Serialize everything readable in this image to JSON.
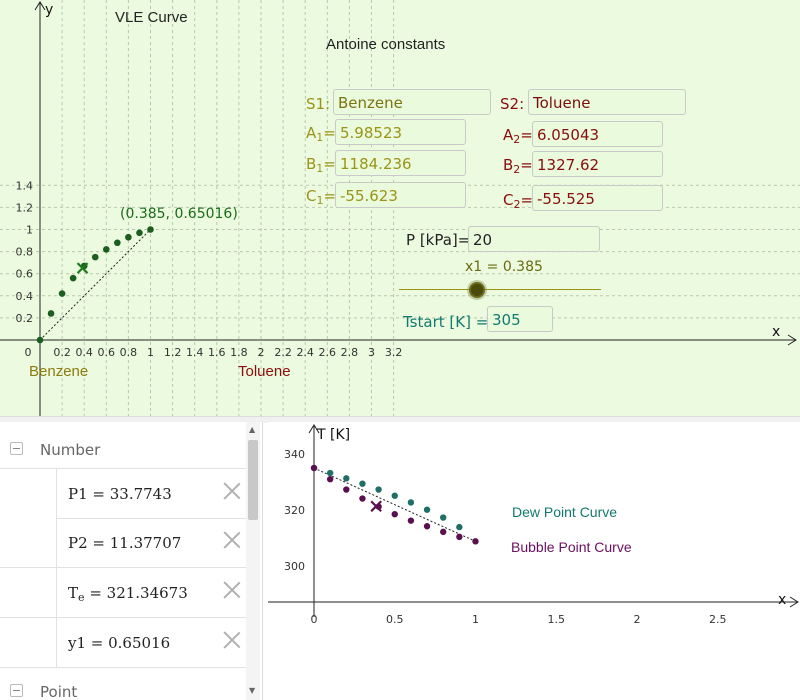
{
  "top_graphics": {
    "title": "VLE Curve",
    "antoine_heading": "Antoine constants",
    "x_axis_name": "x",
    "y_axis_name": "y",
    "x_ticks": [
      "0",
      "0.2",
      "0.4",
      "0.6",
      "0.8",
      "1",
      "1.2",
      "1.4",
      "1.6",
      "1.8",
      "2",
      "2.2",
      "2.4",
      "2.6",
      "2.8",
      "3",
      "3.2"
    ],
    "y_ticks": [
      "0.2",
      "0.4",
      "0.6",
      "0.8",
      "1",
      "1.2",
      "1.4"
    ],
    "component1_label": "Benzene",
    "component2_label": "Toluene",
    "point_label": "(0.385, 0.65016)",
    "s1_label": "S1:",
    "s1_value": "Benzene",
    "s2_label": "S2:",
    "s2_value": "Toluene",
    "a1_label": "A",
    "a1_sub": "1",
    "a1_value": "5.98523",
    "b1_label": "B",
    "b1_sub": "1",
    "b1_value": "1184.236",
    "c1_label": "C",
    "c1_sub": "1",
    "c1_value": "-55.623",
    "a2_label": "A",
    "a2_sub": "2",
    "a2_value": "6.05043",
    "b2_label": "B",
    "b2_sub": "2",
    "b2_value": "1327.62",
    "c2_label": "C",
    "c2_sub": "2",
    "c2_value": "-55.525",
    "equals": "=",
    "pressure_label": "P [kPa]=",
    "pressure_value": "20",
    "slider_label": "x1 = 0.385",
    "slider_value": 0.385,
    "tstart_label": "Tstart [K] =",
    "tstart_value": "305",
    "colors": {
      "background": "#ecfbdf",
      "points": "#1b5e20",
      "cross": "#1b7a1b",
      "gold": "#9a9416",
      "maroon": "#8a0d0d",
      "teal": "#127a6f"
    }
  },
  "algebra_view": {
    "categories": [
      {
        "label": "Number"
      },
      {
        "label": "Point"
      }
    ],
    "items": [
      {
        "name": "P1",
        "value": "P1 = 33.7743"
      },
      {
        "name": "P2",
        "value": "P2 = 11.37707"
      },
      {
        "name": "Te",
        "value": "= 321.34673",
        "prefix": "T",
        "sub": "e"
      },
      {
        "name": "y1",
        "value": "y1 = 0.65016"
      }
    ]
  },
  "bottom_graphics": {
    "y_axis_name": "T [K]",
    "x_axis_name": "x",
    "x_ticks": [
      "0",
      "0.5",
      "1",
      "1.5",
      "2",
      "2.5"
    ],
    "y_ticks": [
      "300",
      "320",
      "340"
    ],
    "dew_label": "Dew Point Curve",
    "bubble_label": "Bubble Point Curve",
    "colors": {
      "dew": "#1f6f66",
      "bubble": "#5a0f4e",
      "dew_text": "#127a6f",
      "bubble_text": "#6a1060"
    }
  },
  "chart_data": [
    {
      "type": "scatter",
      "title": "VLE Curve",
      "xlabel": "x",
      "ylabel": "y",
      "xlim": [
        0,
        3.3
      ],
      "ylim": [
        0,
        1.5
      ],
      "grid": true,
      "series": [
        {
          "name": "",
          "x": [
            0,
            0.1,
            0.2,
            0.3,
            0.4,
            0.5,
            0.6,
            0.7,
            0.8,
            0.9,
            1.0
          ],
          "y": [
            0,
            0.24,
            0.42,
            0.56,
            0.67,
            0.75,
            0.82,
            0.88,
            0.93,
            0.97,
            1.0
          ]
        },
        {
          "name": "",
          "x": [
            0.385
          ],
          "y": [
            0.65016
          ]
        }
      ]
    },
    {
      "type": "scatter",
      "xlabel": "x",
      "ylabel": "T [K]",
      "xlim": [
        -0.1,
        2.95
      ],
      "ylim": [
        292,
        347
      ],
      "grid": false,
      "series": [
        {
          "name": "Dew Point Curve",
          "x": [
            0,
            0.1,
            0.2,
            0.3,
            0.4,
            0.5,
            0.6,
            0.7,
            0.8,
            0.9
          ],
          "y": [
            335,
            333.2,
            331.3,
            329.4,
            327.3,
            325.1,
            322.7,
            320.1,
            317.3,
            313.9
          ]
        },
        {
          "name": "Bubble Point Curve",
          "x": [
            0,
            0.1,
            0.2,
            0.3,
            0.4,
            0.5,
            0.6,
            0.7,
            0.8,
            0.9,
            1.0
          ],
          "y": [
            335,
            331,
            327.3,
            324.1,
            321.2,
            318.5,
            316.2,
            314.2,
            312.2,
            310.4,
            308.8
          ]
        },
        {
          "name": "",
          "x": [
            0.385
          ],
          "y": [
            321.35
          ]
        }
      ]
    }
  ]
}
